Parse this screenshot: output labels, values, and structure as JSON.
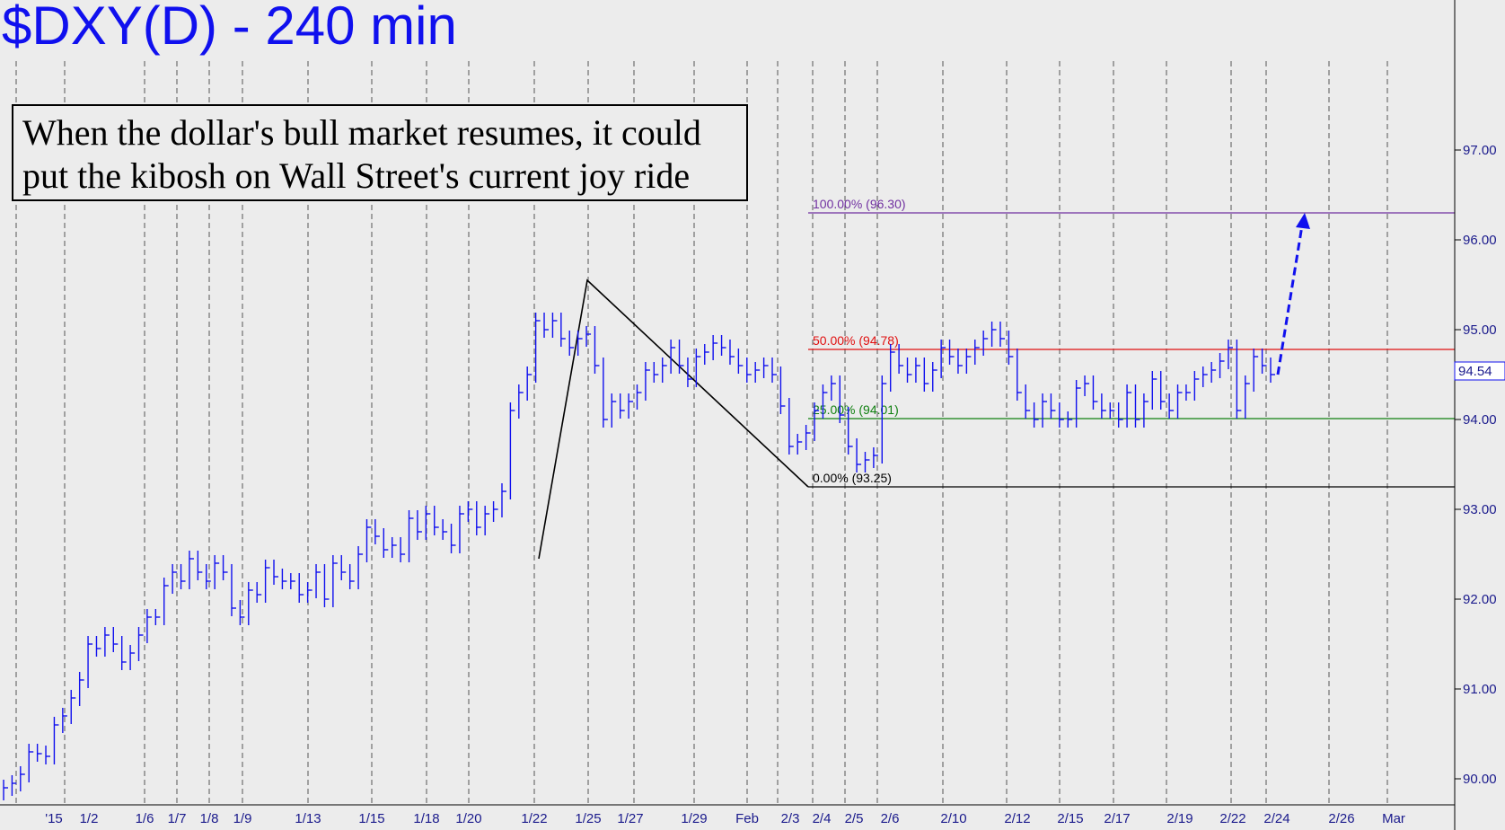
{
  "chart_data": {
    "type": "bar",
    "subtype": "ohlc",
    "title": "$DXY(D) - 240 min",
    "annotation": "When the dollar's bull market resumes, it could put the kibosh on Wall Street's current joy ride",
    "y_axis_position": "right",
    "ylim": [
      89.8,
      97.9
    ],
    "y_ticks": [
      90.0,
      91.0,
      92.0,
      93.0,
      94.0,
      95.0,
      96.0,
      97.0
    ],
    "y_tick_labels": [
      "90.00",
      "91.00",
      "92.00",
      "93.00",
      "94.00",
      "95.00",
      "96.00",
      "97.00"
    ],
    "x_tick_labels": [
      "'15",
      "1/2",
      "1/6",
      "1/7",
      "1/8",
      "1/9",
      "1/13",
      "1/15",
      "1/18",
      "1/20",
      "1/22",
      "1/25",
      "1/27",
      "1/29",
      "Feb",
      "2/3",
      "2/4",
      "2/5",
      "2/6",
      "2/10",
      "2/12",
      "2/15",
      "2/17",
      "2/19",
      "2/22",
      "2/24",
      "2/26",
      "Mar"
    ],
    "grid": "vertical dashed",
    "last_price": 94.54,
    "last_price_label": "94.54",
    "fib_levels": [
      {
        "label": "100.00% (96.30)",
        "value": 96.3,
        "color": "#7030a0"
      },
      {
        "label": "50.00% (94.78)",
        "value": 94.78,
        "color": "#e01010"
      },
      {
        "label": "25.00% (94.01)",
        "value": 94.01,
        "color": "#108010"
      },
      {
        "label": "0.00% (93.25)",
        "value": 93.25,
        "color": "#000000"
      }
    ],
    "pattern_points": [
      {
        "date": "1/22",
        "value": 92.45
      },
      {
        "date": "1/25",
        "value": 95.55
      },
      {
        "date": "2/3",
        "value": 93.25
      }
    ],
    "projection": {
      "from": 94.5,
      "to": 96.3,
      "color": "#1010ee"
    },
    "series": [
      {
        "values": [
          89.9,
          89.95,
          90.05,
          90.3,
          90.28,
          90.25,
          90.6,
          90.7,
          90.9,
          91.1,
          91.5,
          91.45,
          91.6,
          91.5,
          91.3,
          91.4,
          91.6,
          91.8,
          91.8,
          92.15,
          92.3,
          92.2,
          92.45,
          92.3,
          92.2,
          92.4,
          92.3,
          91.9,
          91.8,
          92.1,
          92.05,
          92.35,
          92.25,
          92.2,
          92.2,
          92.05,
          92.1,
          92.3,
          92.0,
          92.4,
          92.3,
          92.2,
          92.5,
          92.8,
          92.7,
          92.55,
          92.6,
          92.5,
          92.9,
          92.75,
          92.95,
          92.8,
          92.75,
          92.6,
          92.95,
          93.0,
          92.8,
          92.95,
          93.0,
          93.2,
          94.1,
          94.3,
          94.5,
          95.1,
          95.0,
          95.1,
          94.9,
          94.8,
          94.9,
          94.95,
          94.6,
          94.0,
          94.2,
          94.1,
          94.2,
          94.3,
          94.55,
          94.5,
          94.6,
          94.8,
          94.6,
          94.45,
          94.7,
          94.75,
          94.85,
          94.8,
          94.7,
          94.6,
          94.5,
          94.55,
          94.6,
          94.5,
          94.15,
          93.7,
          93.75,
          93.85,
          94.1,
          94.3,
          94.4,
          94.05,
          93.7,
          93.5,
          93.55,
          93.6,
          94.4,
          94.75,
          94.6,
          94.5,
          94.6,
          94.4,
          94.55,
          94.8,
          94.7,
          94.6,
          94.7,
          94.8,
          94.9,
          95.0,
          94.9,
          94.7,
          94.3,
          94.1,
          94.0,
          94.2,
          94.1,
          94.0,
          94.0,
          94.35,
          94.4,
          94.2,
          94.1,
          94.1,
          94.0,
          94.3,
          94.0,
          94.2,
          94.45,
          94.2,
          94.1,
          94.3,
          94.3,
          94.45,
          94.5,
          94.55,
          94.65,
          94.8,
          94.1,
          94.4,
          94.7,
          94.6,
          94.5
        ]
      }
    ]
  }
}
